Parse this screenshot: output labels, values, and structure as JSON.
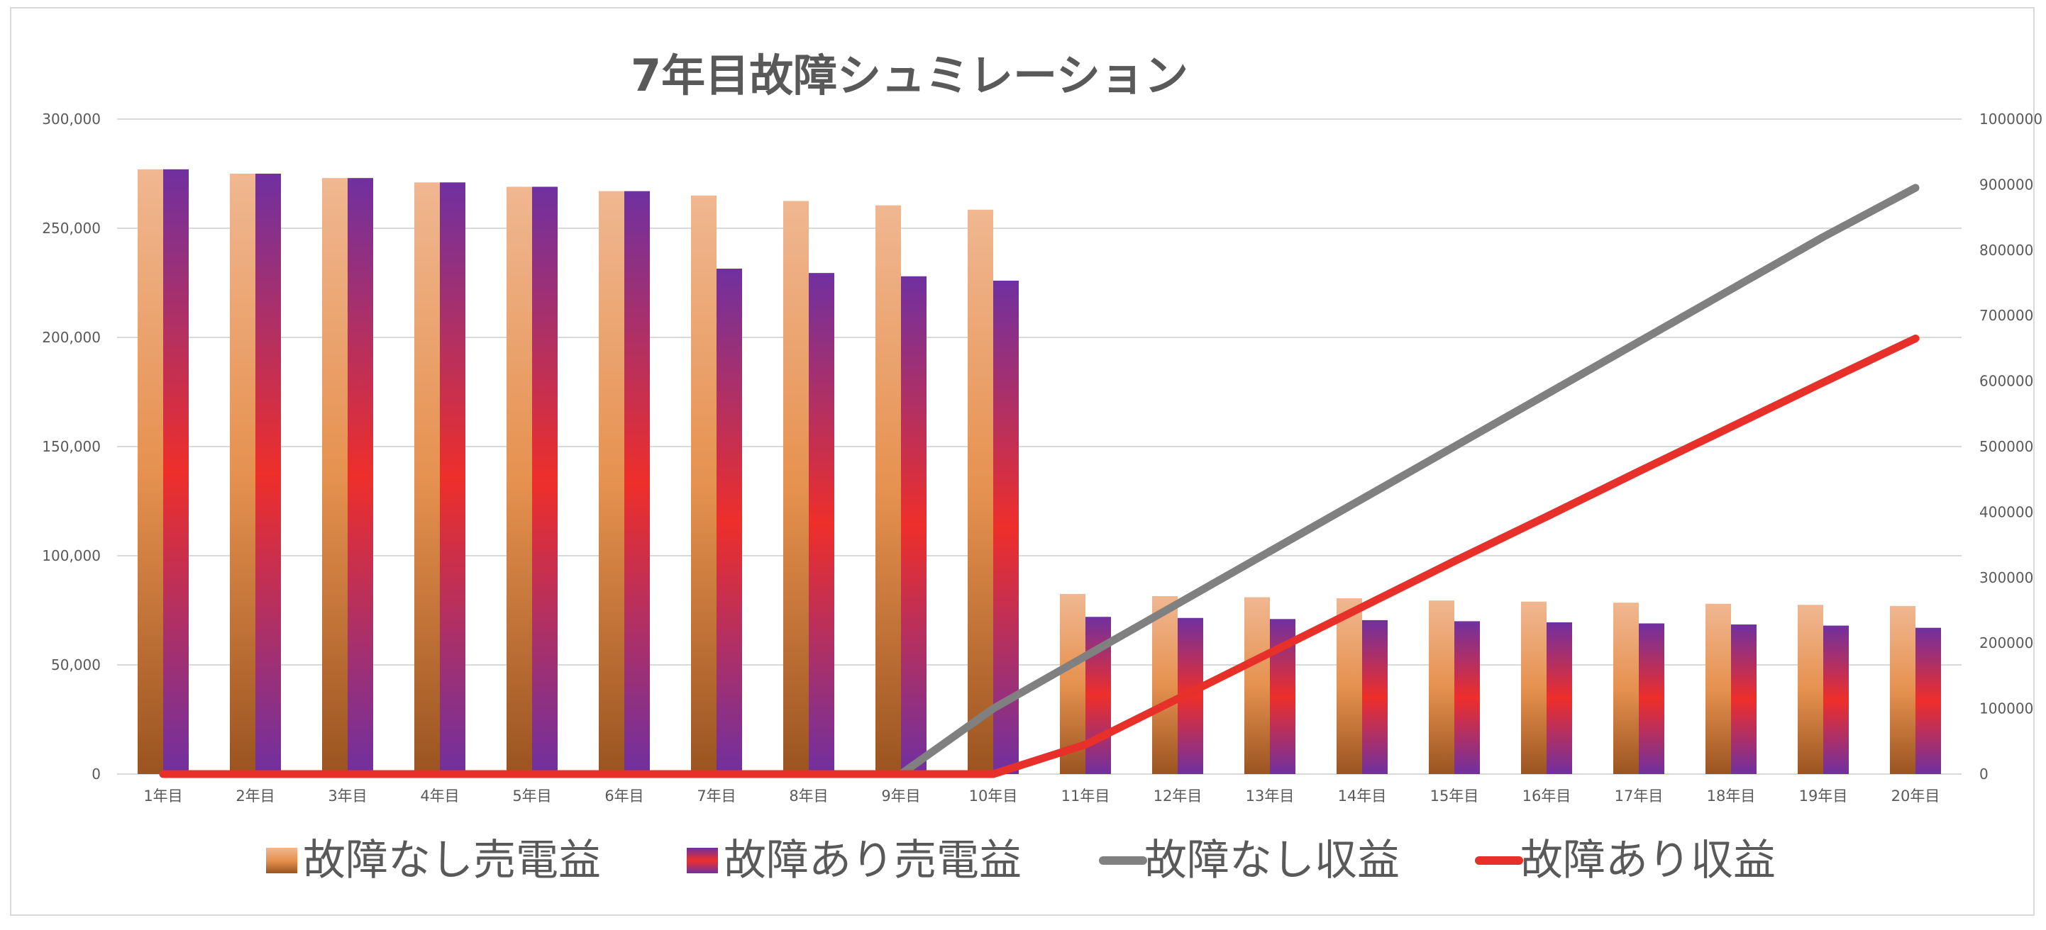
{
  "chart_data": {
    "type": "bar",
    "title": "7年目故障シュミレーション",
    "categories": [
      "1年目",
      "2年目",
      "3年目",
      "4年目",
      "5年目",
      "6年目",
      "7年目",
      "8年目",
      "9年目",
      "10年目",
      "11年目",
      "12年目",
      "13年目",
      "14年目",
      "15年目",
      "16年目",
      "17年目",
      "18年目",
      "19年目",
      "20年目"
    ],
    "y_left": {
      "min": 0,
      "max": 300000,
      "ticks": [
        "0",
        "50,000",
        "100,000",
        "150,000",
        "200,000",
        "250,000",
        "300,000"
      ]
    },
    "y_right": {
      "min": 0,
      "max": 1000000,
      "ticks": [
        "0",
        "100000",
        "200000",
        "300000",
        "400000",
        "500000",
        "600000",
        "700000",
        "800000",
        "900000",
        "1000000"
      ]
    },
    "grid": true,
    "legend_position": "bottom",
    "series": [
      {
        "name": "故障なし売電益",
        "type": "bar",
        "axis": "left",
        "values": [
          277000,
          275000,
          273000,
          271000,
          269000,
          267000,
          265000,
          262500,
          260500,
          258500,
          82500,
          81500,
          81000,
          80500,
          79500,
          79000,
          78500,
          78000,
          77500,
          77000
        ]
      },
      {
        "name": "故障あり売電益",
        "type": "bar",
        "axis": "left",
        "values": [
          277000,
          275000,
          273000,
          271000,
          269000,
          267000,
          231500,
          229500,
          228000,
          226000,
          72000,
          71500,
          71000,
          70500,
          70000,
          69500,
          69000,
          68500,
          68000,
          67000
        ]
      },
      {
        "name": "故障なし収益",
        "type": "line",
        "axis": "right",
        "color": "#808080",
        "values": [
          0,
          0,
          0,
          0,
          0,
          0,
          0,
          0,
          0,
          100000,
          180000,
          260000,
          340000,
          420000,
          500000,
          580000,
          660000,
          740000,
          820000,
          895000
        ]
      },
      {
        "name": "故障あり収益",
        "type": "line",
        "axis": "right",
        "color": "#e8302a",
        "values": [
          0,
          0,
          0,
          0,
          0,
          0,
          0,
          0,
          0,
          0,
          45000,
          115000,
          185000,
          255000,
          325000,
          393000,
          462000,
          530000,
          598000,
          665000
        ]
      }
    ]
  }
}
